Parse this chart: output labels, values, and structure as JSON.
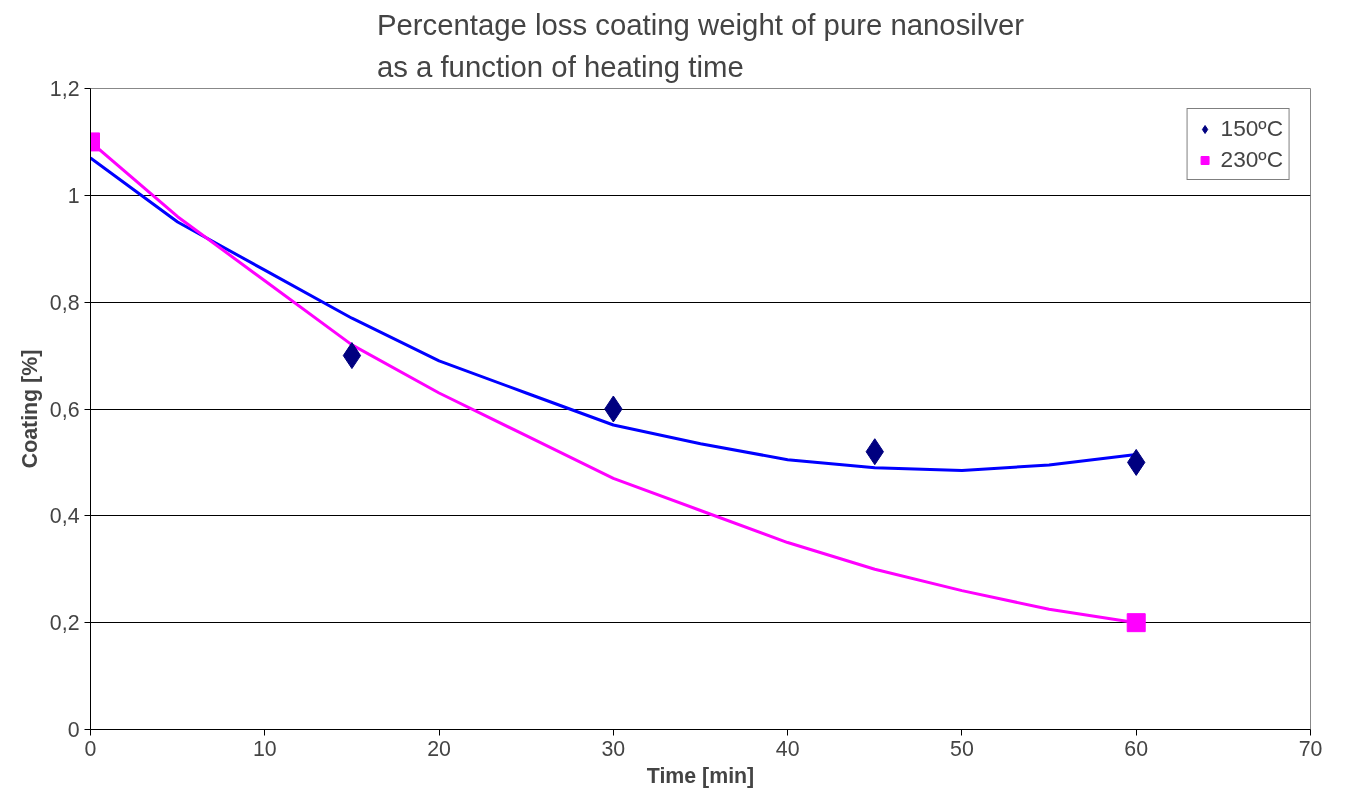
{
  "chart_data": {
    "type": "scatter",
    "title": "Percentage loss coating weight of pure nanosilver\nas a function of heating time",
    "xlabel": "Time [min]",
    "ylabel": "Coating [%]",
    "xlim": [
      0,
      70
    ],
    "xticks": [
      0,
      10,
      20,
      30,
      40,
      50,
      60,
      70
    ],
    "ylim": [
      0,
      1.2
    ],
    "yticks": [
      {
        "value": 0,
        "label": "0"
      },
      {
        "value": 0.2,
        "label": "0,2"
      },
      {
        "value": 0.4,
        "label": "0,4"
      },
      {
        "value": 0.6,
        "label": "0,6"
      },
      {
        "value": 0.8,
        "label": "0,8"
      },
      {
        "value": 1,
        "label": "1"
      },
      {
        "value": 1.2,
        "label": "1,2"
      }
    ],
    "grid": "y",
    "legend": "top right",
    "series": [
      {
        "type": "line",
        "color": "#0000ff",
        "line_style": "solid",
        "x": [
          0,
          5,
          10,
          15,
          20,
          25,
          30,
          35,
          40,
          45,
          50,
          55,
          60
        ],
        "values": [
          1.07,
          0.95,
          0.86,
          0.77,
          0.69,
          0.63,
          0.57,
          0.535,
          0.505,
          0.49,
          0.485,
          0.495,
          0.515
        ]
      },
      {
        "type": "line",
        "color": "#ff00ff",
        "line_style": "solid",
        "x": [
          0,
          5,
          10,
          15,
          20,
          25,
          30,
          35,
          40,
          45,
          50,
          55,
          60
        ],
        "values": [
          1.1,
          0.96,
          0.84,
          0.72,
          0.63,
          0.55,
          0.47,
          0.41,
          0.35,
          0.3,
          0.26,
          0.225,
          0.2
        ]
      },
      {
        "name": "150ºC",
        "color": "#000080",
        "marker": "diamond",
        "x": [
          15,
          30,
          45,
          60
        ],
        "values": [
          0.7,
          0.6,
          0.52,
          0.5
        ]
      },
      {
        "name": "230ºC",
        "color": "#ff00ff",
        "marker": "square",
        "x": [
          0,
          60
        ],
        "values": [
          1.1,
          0.2
        ]
      }
    ]
  }
}
